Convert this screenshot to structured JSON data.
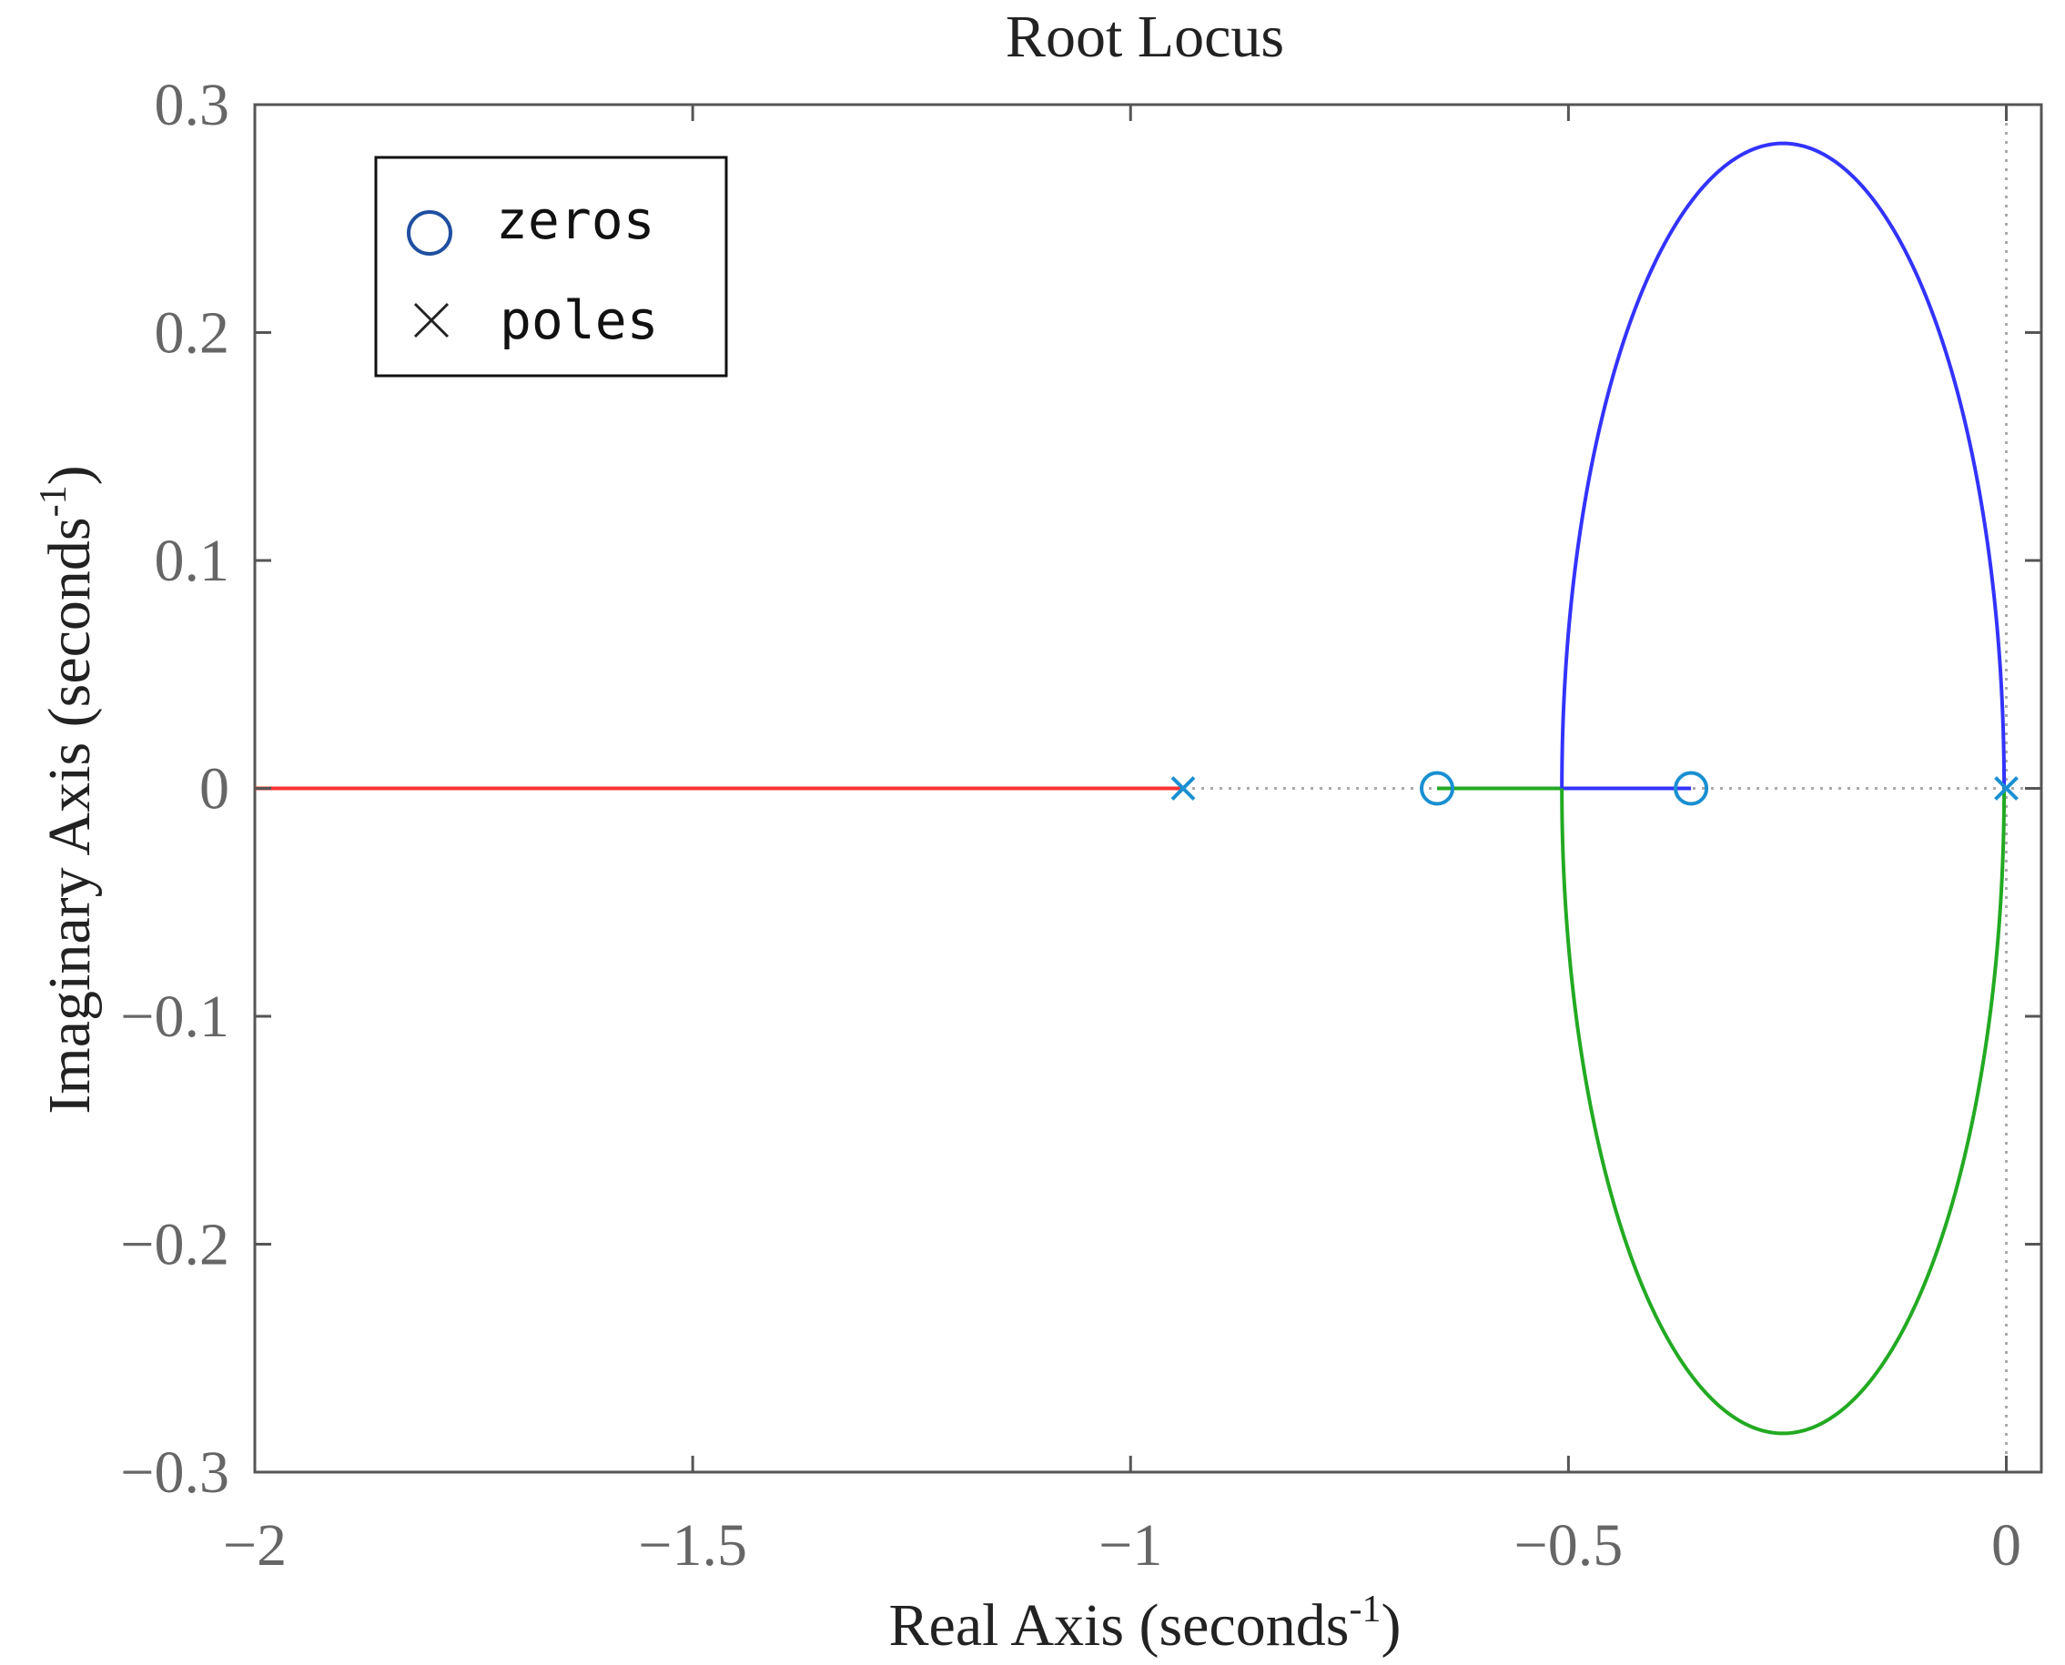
{
  "chart_data": {
    "type": "line",
    "title": "Root Locus",
    "xlabel": "Real Axis (seconds",
    "ylabel": "Imaginary Axis (seconds",
    "label_superscript": "-1",
    "label_close": ")",
    "xlim": [
      -2,
      0.04
    ],
    "ylim": [
      -0.3,
      0.3
    ],
    "x_ticks": [
      -2,
      -1.5,
      -1,
      -0.5,
      0
    ],
    "x_tick_labels": [
      "−2",
      "−1.5",
      "−1",
      "−0.5",
      "0"
    ],
    "y_ticks": [
      0.3,
      0.2,
      0.1,
      0,
      -0.1,
      -0.2,
      -0.3
    ],
    "y_tick_labels": [
      "0.3",
      "0.2",
      "0.1",
      "0",
      "−0.1",
      "−0.2",
      "−0.3"
    ],
    "grid": false,
    "legend_position": "top-left",
    "legend": [
      {
        "label": "zeros",
        "marker": "circle"
      },
      {
        "label": "poles",
        "marker": "x"
      }
    ],
    "poles": [
      [
        -0.94,
        0
      ],
      [
        0,
        0
      ]
    ],
    "zeros": [
      [
        -0.65,
        0
      ],
      [
        -0.36,
        0
      ]
    ],
    "loop": {
      "center": -0.255,
      "half_width": 0.2525,
      "height": 0.283
    },
    "series": [
      {
        "color": "#ff3333",
        "points": [
          [
            -2,
            0
          ],
          [
            -0.94,
            0
          ]
        ]
      },
      {
        "color": "#22aa22",
        "points": [
          [
            -0.65,
            0
          ],
          [
            -0.5075,
            0
          ]
        ]
      },
      {
        "color": "#3333ff",
        "points": [
          [
            -0.5075,
            0
          ],
          [
            -0.36,
            0
          ]
        ]
      }
    ],
    "upper_arc_color": "#3333ff",
    "lower_arc_color": "#22aa22",
    "marker_color": "#1a8fd1",
    "legend_circle_color": "#1f4fa0",
    "legend_x_color": "#222222",
    "dotted_color": "#aaaaaa"
  }
}
